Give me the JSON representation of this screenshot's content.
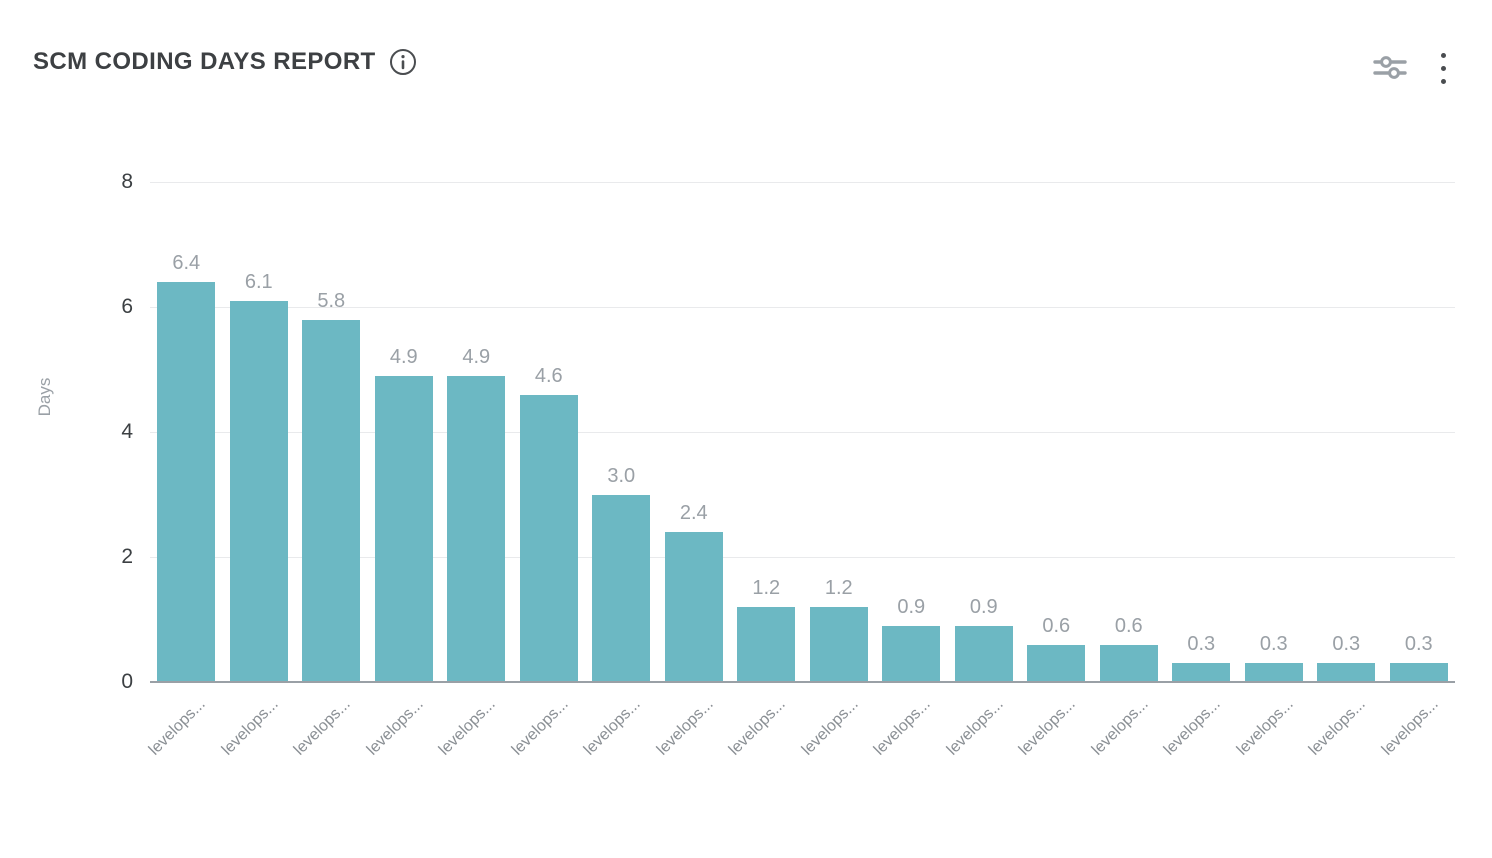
{
  "header": {
    "title": "SCM CODING DAYS REPORT",
    "icons": {
      "info": "info-circle",
      "filter": "sliders-filter",
      "menu": "kebab-vertical-menu"
    }
  },
  "chart_data": {
    "type": "bar",
    "title": "SCM CODING DAYS REPORT",
    "xlabel": "",
    "ylabel": "Days",
    "ylim": [
      0,
      8
    ],
    "yticks": [
      "0",
      "2",
      "4",
      "6",
      "8"
    ],
    "grid": true,
    "legend": "none",
    "bar_color": "#6cb8c3",
    "categories": [
      "levelops...",
      "levelops...",
      "levelops...",
      "levelops...",
      "levelops...",
      "levelops...",
      "levelops...",
      "levelops...",
      "levelops...",
      "levelops...",
      "levelops...",
      "levelops...",
      "levelops...",
      "levelops...",
      "levelops...",
      "levelops...",
      "levelops...",
      "levelops..."
    ],
    "values": [
      6.4,
      6.1,
      5.8,
      4.9,
      4.9,
      4.6,
      3.0,
      2.4,
      1.2,
      1.2,
      0.9,
      0.9,
      0.6,
      0.6,
      0.3,
      0.3,
      0.3,
      0.3
    ],
    "value_labels": [
      "6.4",
      "6.1",
      "5.8",
      "4.9",
      "4.9",
      "4.6",
      "3.0",
      "2.4",
      "1.2",
      "1.2",
      "0.9",
      "0.9",
      "0.6",
      "0.6",
      "0.3",
      "0.3",
      "0.3",
      "0.3"
    ]
  }
}
